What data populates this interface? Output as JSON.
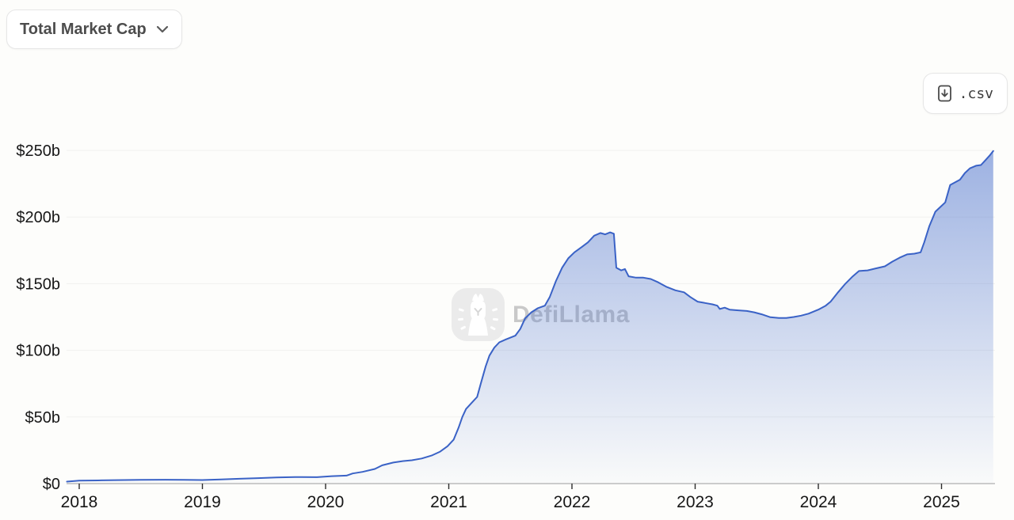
{
  "toolbar": {
    "metric_selector": {
      "label": "Total Market Cap"
    },
    "csv_button": {
      "label": ".csv"
    }
  },
  "watermark": {
    "brand": "DefiLlama"
  },
  "chart_data": {
    "type": "area",
    "title": "Total Market Cap",
    "x_unit": "year",
    "xlim": [
      2017.9,
      2025.42
    ],
    "ylim": [
      0,
      250
    ],
    "grid": true,
    "legend": false,
    "y_tick_values": [
      0,
      50,
      100,
      150,
      200,
      250
    ],
    "y_tick_labels": [
      "$0",
      "$50b",
      "$100b",
      "$150b",
      "$200b",
      "$250b"
    ],
    "x_tick_values": [
      2018,
      2019,
      2020,
      2021,
      2022,
      2023,
      2024,
      2025
    ],
    "x_tick_labels": [
      "2018",
      "2019",
      "2020",
      "2021",
      "2022",
      "2023",
      "2024",
      "2025"
    ],
    "line_color": "#3a62c6",
    "area_gradient_top": "rgba(62,103,201,0.50)",
    "area_gradient_bottom": "rgba(62,103,201,0.02)",
    "axis_color": "#9c9c9c",
    "tick_color": "#2b2b2b",
    "grid_color": "#f1f1ef",
    "label_color": "#171717",
    "series": [
      {
        "name": "Total Market Cap ($b)",
        "points": [
          [
            2017.9,
            1.5
          ],
          [
            2018.0,
            2.2
          ],
          [
            2018.15,
            2.4
          ],
          [
            2018.3,
            2.6
          ],
          [
            2018.5,
            2.8
          ],
          [
            2018.7,
            2.9
          ],
          [
            2018.85,
            2.8
          ],
          [
            2019.0,
            2.7
          ],
          [
            2019.15,
            3.1
          ],
          [
            2019.3,
            3.6
          ],
          [
            2019.45,
            4.1
          ],
          [
            2019.6,
            4.6
          ],
          [
            2019.75,
            4.9
          ],
          [
            2019.93,
            4.8
          ],
          [
            2020.05,
            5.6
          ],
          [
            2020.17,
            6.0
          ],
          [
            2020.22,
            7.6
          ],
          [
            2020.3,
            8.8
          ],
          [
            2020.4,
            11.0
          ],
          [
            2020.46,
            13.7
          ],
          [
            2020.55,
            15.8
          ],
          [
            2020.62,
            16.8
          ],
          [
            2020.7,
            17.5
          ],
          [
            2020.78,
            18.8
          ],
          [
            2020.86,
            21.0
          ],
          [
            2020.93,
            24.0
          ],
          [
            2020.99,
            28.0
          ],
          [
            2021.04,
            33.0
          ],
          [
            2021.08,
            42.0
          ],
          [
            2021.11,
            50.0
          ],
          [
            2021.14,
            56.0
          ],
          [
            2021.19,
            61.0
          ],
          [
            2021.23,
            65.0
          ],
          [
            2021.26,
            75.0
          ],
          [
            2021.3,
            88.0
          ],
          [
            2021.33,
            96.0
          ],
          [
            2021.37,
            102.0
          ],
          [
            2021.41,
            106.0
          ],
          [
            2021.46,
            108.0
          ],
          [
            2021.5,
            109.5
          ],
          [
            2021.54,
            111.0
          ],
          [
            2021.58,
            116.0
          ],
          [
            2021.62,
            124.0
          ],
          [
            2021.67,
            128.5
          ],
          [
            2021.72,
            131.5
          ],
          [
            2021.78,
            133.5
          ],
          [
            2021.82,
            140.0
          ],
          [
            2021.87,
            152.0
          ],
          [
            2021.92,
            162.0
          ],
          [
            2021.97,
            169.0
          ],
          [
            2022.02,
            173.5
          ],
          [
            2022.08,
            177.5
          ],
          [
            2022.13,
            181.0
          ],
          [
            2022.18,
            186.0
          ],
          [
            2022.23,
            188.0
          ],
          [
            2022.27,
            187.0
          ],
          [
            2022.31,
            188.5
          ],
          [
            2022.34,
            187.5
          ],
          [
            2022.36,
            162.0
          ],
          [
            2022.4,
            160.0
          ],
          [
            2022.43,
            161.0
          ],
          [
            2022.46,
            155.5
          ],
          [
            2022.52,
            154.5
          ],
          [
            2022.58,
            154.5
          ],
          [
            2022.64,
            153.5
          ],
          [
            2022.7,
            151.0
          ],
          [
            2022.77,
            147.5
          ],
          [
            2022.84,
            145.0
          ],
          [
            2022.91,
            143.5
          ],
          [
            2022.96,
            140.0
          ],
          [
            2023.02,
            136.5
          ],
          [
            2023.08,
            135.5
          ],
          [
            2023.14,
            134.5
          ],
          [
            2023.18,
            133.5
          ],
          [
            2023.2,
            131.0
          ],
          [
            2023.24,
            132.0
          ],
          [
            2023.28,
            130.5
          ],
          [
            2023.35,
            130.0
          ],
          [
            2023.42,
            129.5
          ],
          [
            2023.48,
            128.5
          ],
          [
            2023.54,
            127.0
          ],
          [
            2023.61,
            124.8
          ],
          [
            2023.68,
            124.3
          ],
          [
            2023.74,
            124.2
          ],
          [
            2023.8,
            125.0
          ],
          [
            2023.86,
            126.0
          ],
          [
            2023.92,
            127.5
          ],
          [
            2024.0,
            130.5
          ],
          [
            2024.06,
            133.5
          ],
          [
            2024.1,
            136.5
          ],
          [
            2024.16,
            143.5
          ],
          [
            2024.22,
            150.0
          ],
          [
            2024.28,
            155.5
          ],
          [
            2024.33,
            159.5
          ],
          [
            2024.4,
            160.0
          ],
          [
            2024.47,
            161.5
          ],
          [
            2024.54,
            163.0
          ],
          [
            2024.6,
            166.5
          ],
          [
            2024.66,
            169.5
          ],
          [
            2024.72,
            172.0
          ],
          [
            2024.78,
            172.5
          ],
          [
            2024.83,
            173.5
          ],
          [
            2024.86,
            181.0
          ],
          [
            2024.9,
            193.0
          ],
          [
            2024.95,
            204.0
          ],
          [
            2024.99,
            207.5
          ],
          [
            2025.03,
            211.0
          ],
          [
            2025.07,
            224.0
          ],
          [
            2025.11,
            226.0
          ],
          [
            2025.15,
            228.0
          ],
          [
            2025.19,
            233.0
          ],
          [
            2025.23,
            236.5
          ],
          [
            2025.28,
            238.5
          ],
          [
            2025.32,
            239.0
          ],
          [
            2025.36,
            243.0
          ],
          [
            2025.39,
            246.0
          ],
          [
            2025.42,
            249.5
          ]
        ]
      }
    ]
  }
}
